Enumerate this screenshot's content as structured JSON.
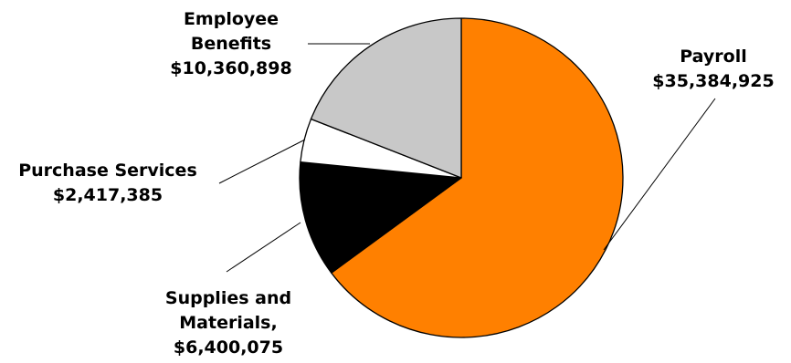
{
  "chart_data": {
    "type": "pie",
    "slices": [
      {
        "label_lines": [
          "Payroll",
          "$35,384,925"
        ],
        "value": 35384925,
        "color": "#FF8000"
      },
      {
        "label_lines": [
          "Supplies and",
          "Materials,",
          "$6,400,075"
        ],
        "value": 6400075,
        "color": "#000000"
      },
      {
        "label_lines": [
          "Purchase Services",
          "$2,417,385"
        ],
        "value": 2417385,
        "color": "#FFFFFF"
      },
      {
        "label_lines": [
          "Employee",
          "Benefits",
          "$10,360,898"
        ],
        "value": 10360898,
        "color": "#C8C8C8"
      }
    ],
    "outline_color": "#000000",
    "leader_line_color": "#000000",
    "legend": "none",
    "start": "12 o'clock, clockwise"
  }
}
